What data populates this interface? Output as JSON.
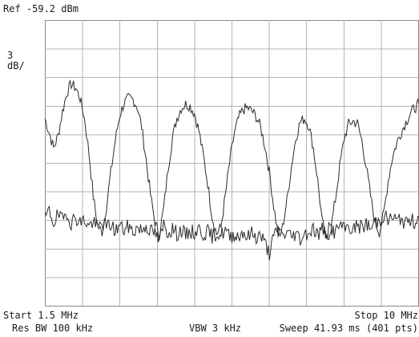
{
  "annotations": {
    "reference_level": "Ref -59.2 dBm",
    "scale_value": "3",
    "scale_unit": "dB/",
    "start_freq": "Start 1.5 MHz",
    "stop_freq": "Stop 10 MHz",
    "resolution_bw": "Res BW 100 kHz",
    "video_bw": "VBW 3 kHz",
    "sweep": "Sweep 41.93 ms (401 pts)"
  },
  "chart_data": {
    "type": "line",
    "x_unit": "MHz",
    "y_unit": "dBm",
    "xlim": [
      1.5,
      10
    ],
    "ylim": [
      -89.2,
      -59.2
    ],
    "grid": true,
    "points": 401,
    "series": [
      {
        "x": [
          1.5,
          1.6,
          1.7,
          1.8,
          1.9,
          2.0,
          2.1,
          2.2,
          2.3,
          2.4,
          2.5,
          2.6,
          2.7,
          2.8,
          2.9,
          3.0,
          3.1,
          3.2,
          3.3,
          3.4,
          3.5,
          3.6,
          3.7,
          3.8,
          3.9,
          4.0,
          4.1,
          4.2,
          4.3,
          4.4,
          4.5,
          4.6,
          4.7,
          4.8,
          4.9,
          5.0,
          5.1,
          5.2,
          5.3,
          5.4,
          5.5,
          5.6,
          5.7,
          5.8,
          5.9,
          6.0,
          6.1,
          6.2,
          6.3,
          6.4,
          6.5,
          6.6,
          6.7,
          6.8,
          6.9,
          7.0,
          7.1,
          7.2,
          7.3,
          7.4,
          7.5,
          7.6,
          7.7,
          7.8,
          7.9,
          8.0,
          8.1,
          8.2,
          8.3,
          8.4,
          8.5,
          8.6,
          8.7,
          8.8,
          8.9,
          9.0,
          9.1,
          9.2,
          9.3,
          9.4,
          9.5,
          9.6,
          9.7,
          9.8,
          9.9,
          10.0
        ],
        "y": [
          -69.5,
          -71.0,
          -72.6,
          -71.3,
          -68.8,
          -66.8,
          -65.9,
          -66.3,
          -67.4,
          -69.5,
          -73.0,
          -77.7,
          -80.8,
          -81.4,
          -78.7,
          -75.1,
          -71.8,
          -69.2,
          -67.9,
          -67.4,
          -67.5,
          -68.3,
          -70.4,
          -73.8,
          -77.5,
          -80.4,
          -81.7,
          -78.9,
          -74.7,
          -71.5,
          -69.5,
          -68.4,
          -68.0,
          -68.2,
          -69.0,
          -70.8,
          -73.4,
          -76.3,
          -79.8,
          -81.6,
          -80.9,
          -77.6,
          -74.0,
          -71.2,
          -69.5,
          -68.6,
          -68.4,
          -68.7,
          -69.3,
          -70.4,
          -72.4,
          -75.1,
          -78.7,
          -81.7,
          -80.9,
          -78.1,
          -74.6,
          -71.6,
          -69.9,
          -69.5,
          -70.3,
          -72.6,
          -76.0,
          -80.3,
          -82.4,
          -81.0,
          -78.0,
          -74.5,
          -71.6,
          -70.1,
          -69.8,
          -70.0,
          -71.8,
          -74.5,
          -77.6,
          -80.4,
          -81.4,
          -79.5,
          -76.0,
          -73.5,
          -72.0,
          -70.9,
          -69.9,
          -69.0,
          -68.4,
          -68.0
        ]
      },
      {
        "x": [
          1.5,
          1.6,
          1.7,
          1.8,
          1.9,
          2.0,
          2.1,
          2.2,
          2.3,
          2.4,
          2.5,
          2.6,
          2.7,
          2.8,
          2.9,
          3.0,
          3.1,
          3.2,
          3.3,
          3.4,
          3.5,
          3.6,
          3.7,
          3.8,
          3.9,
          4.0,
          4.1,
          4.2,
          4.3,
          4.4,
          4.5,
          4.6,
          4.7,
          4.8,
          4.9,
          5.0,
          5.1,
          5.2,
          5.3,
          5.4,
          5.5,
          5.6,
          5.7,
          5.8,
          5.9,
          6.0,
          6.1,
          6.2,
          6.3,
          6.4,
          6.5,
          6.6,
          6.7,
          6.8,
          6.9,
          7.0,
          7.1,
          7.2,
          7.3,
          7.4,
          7.5,
          7.6,
          7.7,
          7.8,
          7.9,
          8.0,
          8.1,
          8.2,
          8.3,
          8.4,
          8.5,
          8.6,
          8.7,
          8.8,
          8.9,
          9.0,
          9.1,
          9.2,
          9.3,
          9.4,
          9.5,
          9.6,
          9.7,
          9.8,
          9.9,
          10.0
        ],
        "y": [
          -80.0,
          -79.2,
          -80.4,
          -79.6,
          -80.2,
          -79.3,
          -80.5,
          -79.8,
          -80.4,
          -80.1,
          -80.8,
          -80.3,
          -81.0,
          -80.4,
          -80.9,
          -80.6,
          -81.3,
          -80.7,
          -81.2,
          -80.8,
          -81.4,
          -80.9,
          -81.2,
          -80.7,
          -81.3,
          -81.5,
          -82.4,
          -80.6,
          -81.5,
          -81.0,
          -81.6,
          -81.2,
          -81.8,
          -81.3,
          -81.5,
          -81.1,
          -81.6,
          -81.4,
          -81.9,
          -81.5,
          -81.7,
          -81.2,
          -82.0,
          -81.6,
          -81.9,
          -81.3,
          -82.0,
          -81.5,
          -81.9,
          -81.7,
          -82.6,
          -83.6,
          -81.9,
          -81.2,
          -81.8,
          -81.4,
          -81.9,
          -81.5,
          -82.1,
          -81.6,
          -81.4,
          -81.0,
          -81.7,
          -81.1,
          -81.5,
          -80.9,
          -81.5,
          -80.6,
          -81.2,
          -80.7,
          -81.3,
          -80.6,
          -81.0,
          -80.5,
          -81.1,
          -80.4,
          -80.2,
          -79.6,
          -80.2,
          -79.8,
          -80.3,
          -79.9,
          -80.6,
          -80.1,
          -80.3,
          -79.9
        ]
      }
    ]
  }
}
